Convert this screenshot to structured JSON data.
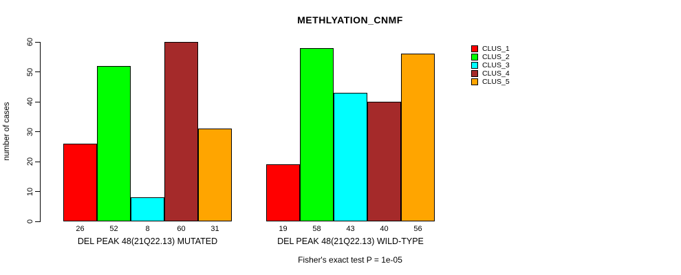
{
  "chart_data": {
    "type": "bar",
    "title": "METHLYATION_CNMF",
    "ylabel": "number of cases",
    "xlabel": "",
    "ylim": [
      0,
      60
    ],
    "yticks": [
      0,
      10,
      20,
      30,
      40,
      50,
      60
    ],
    "grid": false,
    "bar_value_labels": true,
    "legend_position": "right",
    "categories": [
      "DEL PEAK 48(21Q22.13) MUTATED",
      "DEL PEAK 48(21Q22.13) WILD-TYPE"
    ],
    "series": [
      {
        "name": "CLUS_1",
        "color": "#FF0000",
        "values": [
          26,
          19
        ]
      },
      {
        "name": "CLUS_2",
        "color": "#00FF00",
        "values": [
          52,
          58
        ]
      },
      {
        "name": "CLUS_3",
        "color": "#00FFFF",
        "values": [
          8,
          43
        ]
      },
      {
        "name": "CLUS_4",
        "color": "#A52A2A",
        "values": [
          60,
          40
        ]
      },
      {
        "name": "CLUS_5",
        "color": "#FFA500",
        "values": [
          31,
          56
        ]
      }
    ],
    "annotation": "Fisher's exact test P = 1e-05"
  }
}
